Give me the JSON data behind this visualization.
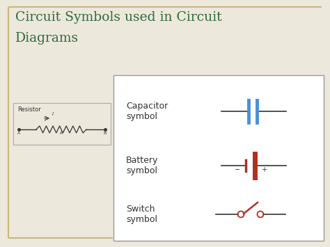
{
  "title_line1": "Circuit Symbols used in Circuit",
  "title_line2": "Diagrams",
  "title_color": "#2E6B3E",
  "bg_color": "#EDE8DC",
  "border_color": "#C8B87A",
  "panel_bg": "#FFFFFF",
  "panel_border": "#999999",
  "resistor_label": "Resistor",
  "capacitor_label": "Capacitor\nsymbol",
  "battery_label": "Battery\nsymbol",
  "switch_label": "Switch\nsymbol",
  "capacitor_color": "#4A90D9",
  "battery_color": "#B03020",
  "switch_color": "#B03020",
  "wire_color": "#333333",
  "label_color": "#333333",
  "fig_w": 4.74,
  "fig_h": 3.55,
  "dpi": 100
}
